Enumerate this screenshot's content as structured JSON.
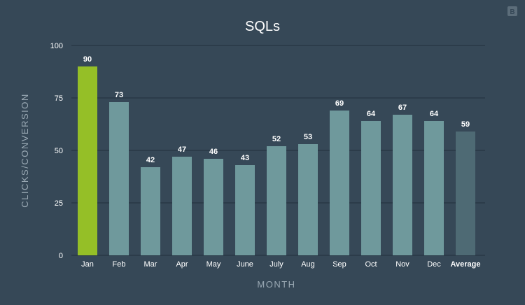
{
  "colors": {
    "background": "#364857",
    "bar_default": "#6f999c",
    "bar_highlight": "#95bf27",
    "bar_average": "#4e6a74",
    "gridline": "#22313d",
    "axis_text": "#9aa9b4"
  },
  "logo": {
    "text": "B"
  },
  "chart_data": {
    "type": "bar",
    "title": "SQLs",
    "xlabel": "MONTH",
    "ylabel": "CLICKS/CONVERSION",
    "categories": [
      "Jan",
      "Feb",
      "Mar",
      "Apr",
      "May",
      "June",
      "July",
      "Aug",
      "Sep",
      "Oct",
      "Nov",
      "Dec",
      "Average"
    ],
    "values": [
      90,
      73,
      42,
      47,
      46,
      43,
      52,
      53,
      69,
      64,
      67,
      64,
      59
    ],
    "highlight_category": "Jan",
    "average_category": "Average",
    "ylim": [
      0,
      100
    ],
    "yticks": [
      0,
      25,
      50,
      75,
      100
    ],
    "grid": true,
    "legend": "none"
  }
}
